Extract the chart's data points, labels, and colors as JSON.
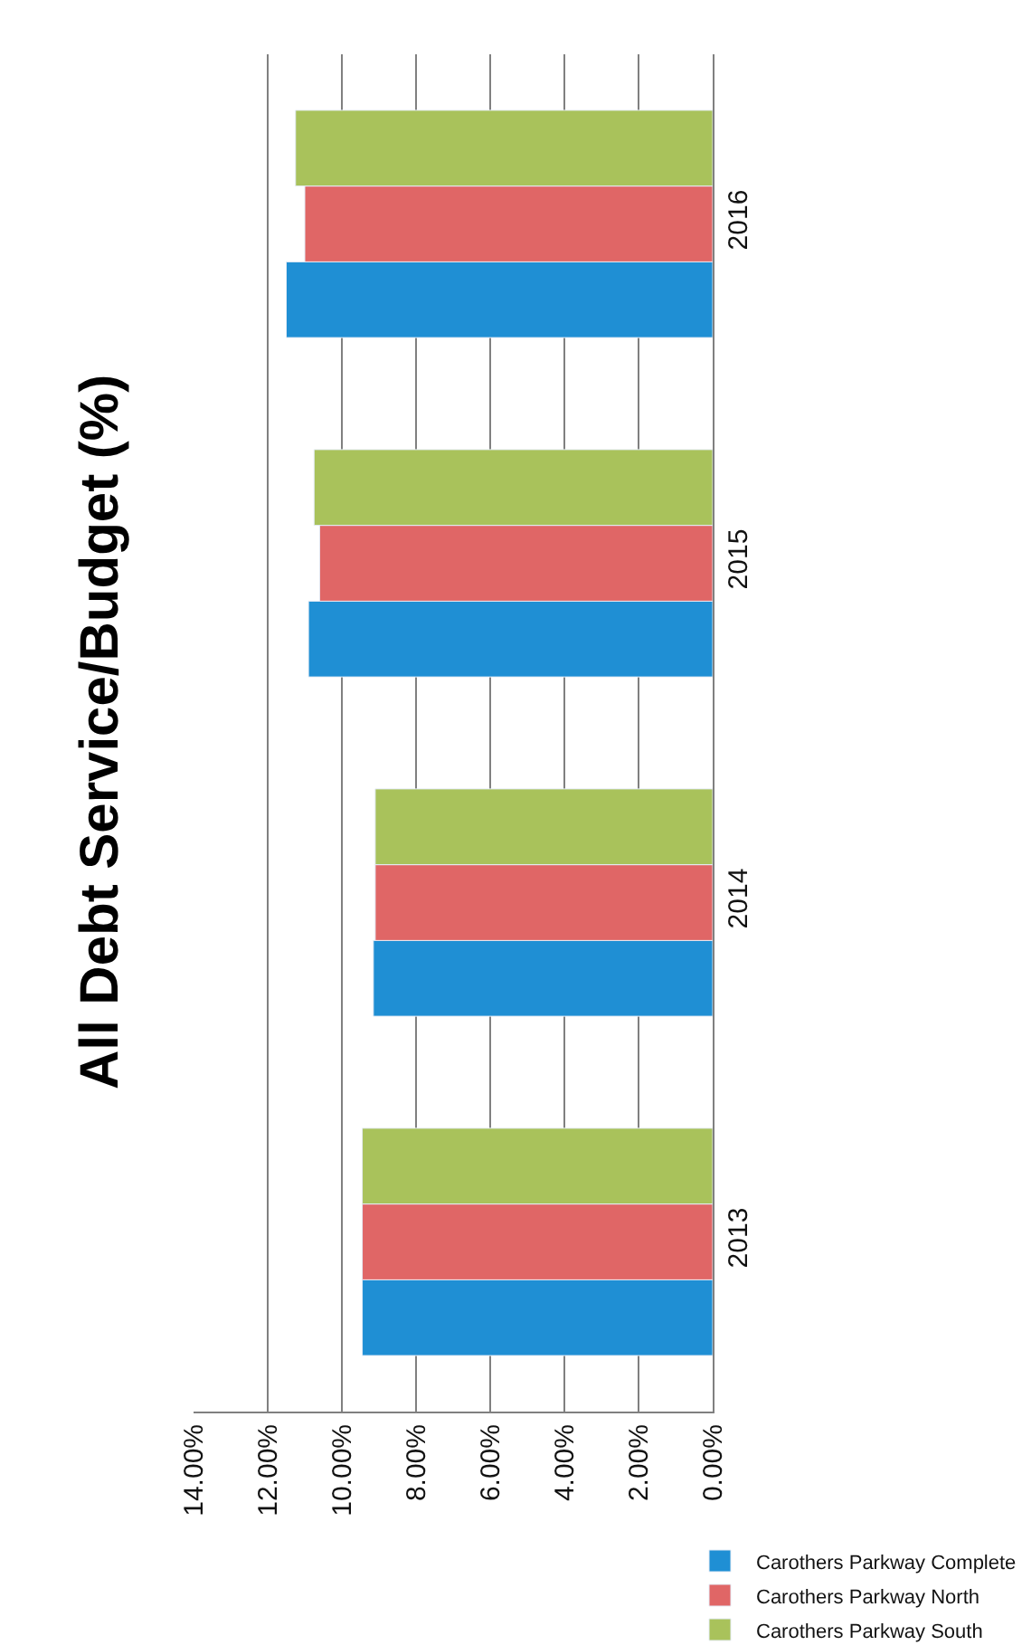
{
  "chart_data": {
    "type": "bar",
    "title": "All Debt Service/Budget (%)",
    "orientation": "horizontal",
    "categories": [
      "2016",
      "2015",
      "2014",
      "2013"
    ],
    "series": [
      {
        "name": "Carothers Parkway Complete",
        "color": "#1f8fd4",
        "values": [
          11.5,
          10.9,
          9.15,
          9.45
        ]
      },
      {
        "name": "Carothers Parkway North",
        "color": "#e06666",
        "values": [
          11.0,
          10.6,
          9.1,
          9.45
        ]
      },
      {
        "name": "Carothers Parkway South",
        "color": "#a9c25b",
        "values": [
          11.25,
          10.75,
          9.1,
          9.45
        ]
      }
    ],
    "xlim": [
      14,
      0
    ],
    "xticks": [
      {
        "value": 14,
        "label": "14.00%"
      },
      {
        "value": 12,
        "label": "12.00%"
      },
      {
        "value": 10,
        "label": "10.00%"
      },
      {
        "value": 8,
        "label": "8.00%"
      },
      {
        "value": 6,
        "label": "6.00%"
      },
      {
        "value": 4,
        "label": "4.00%"
      },
      {
        "value": 2,
        "label": "2.00%"
      },
      {
        "value": 0,
        "label": "0.00%"
      }
    ],
    "grid": "x",
    "legend": "right"
  }
}
